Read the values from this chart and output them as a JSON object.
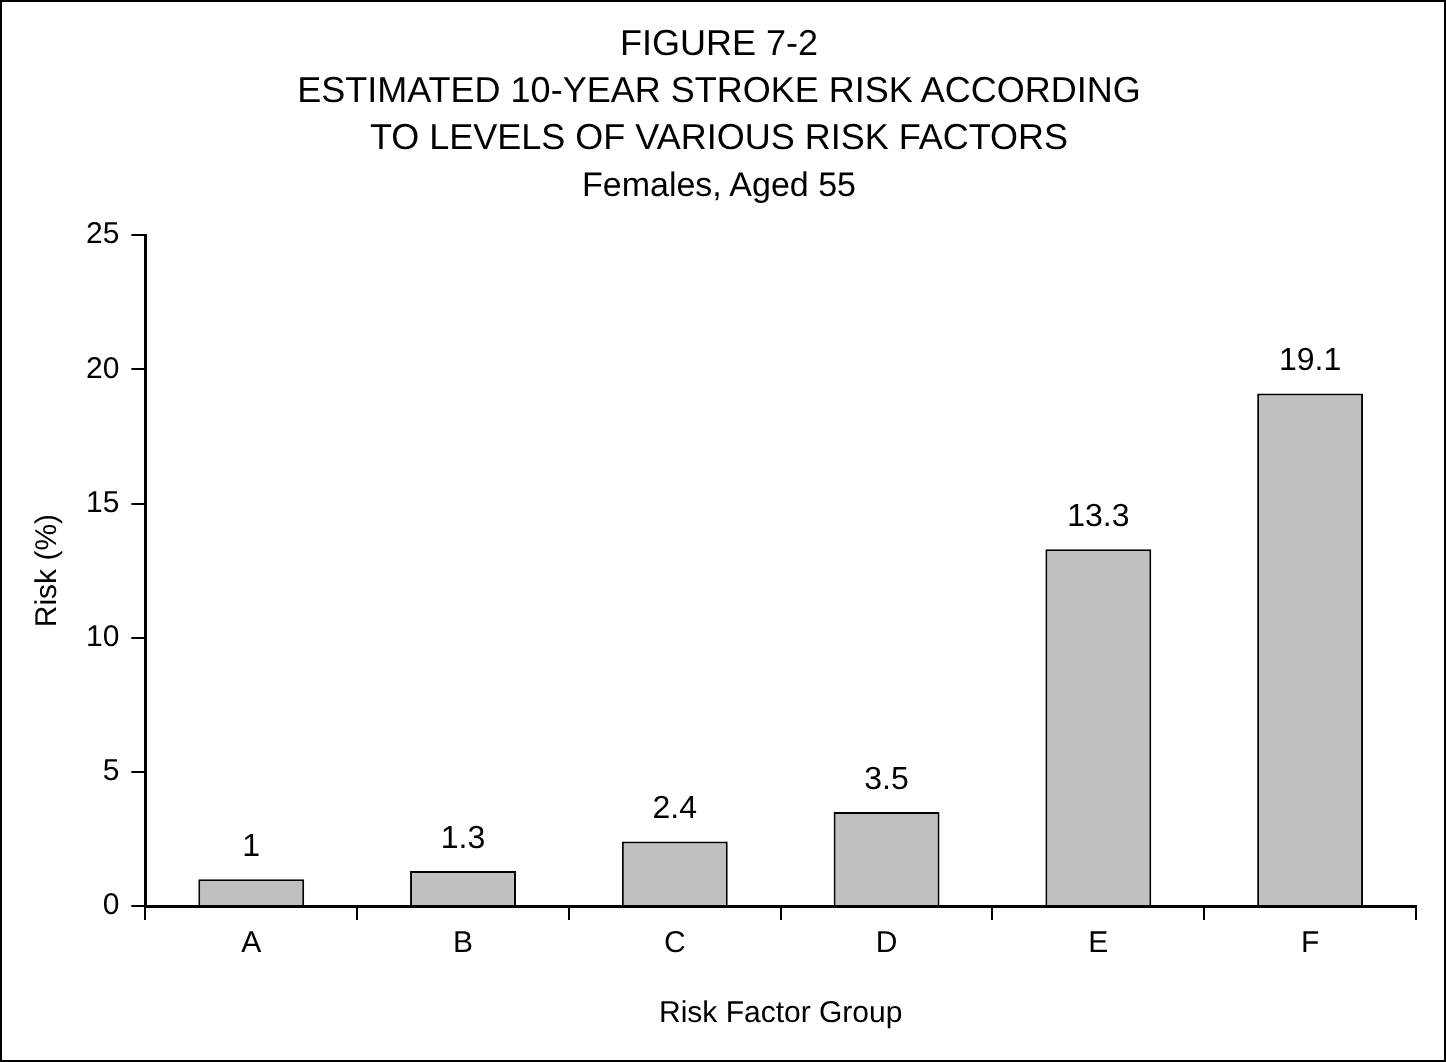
{
  "chart_data": {
    "type": "bar",
    "title": "FIGURE 7-2\nESTIMATED 10-YEAR STROKE RISK ACCORDING\nTO LEVELS OF VARIOUS RISK FACTORS",
    "subtitle": "Females, Aged 55",
    "xlabel": "Risk Factor Group",
    "ylabel": "Risk (%)",
    "categories": [
      "A",
      "B",
      "C",
      "D",
      "E",
      "F"
    ],
    "values": [
      1,
      1.3,
      2.4,
      3.5,
      13.3,
      19.1
    ],
    "color": "#c0c0c0",
    "ylim": [
      0,
      25
    ],
    "yticks": [
      0,
      5,
      10,
      15,
      20,
      25
    ],
    "grid": false,
    "legend": false,
    "data_labels": true
  }
}
